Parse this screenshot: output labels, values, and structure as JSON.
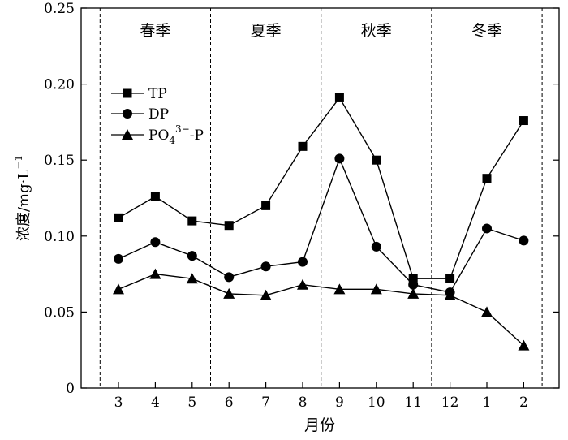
{
  "chart_data": {
    "type": "line",
    "categories": [
      "3",
      "4",
      "5",
      "6",
      "7",
      "8",
      "9",
      "10",
      "11",
      "12",
      "1",
      "2"
    ],
    "series": [
      {
        "name": "TP",
        "marker": "square",
        "values": [
          0.112,
          0.126,
          0.11,
          0.107,
          0.12,
          0.159,
          0.191,
          0.15,
          0.072,
          0.072,
          0.138,
          0.176
        ]
      },
      {
        "name": "DP",
        "marker": "circle",
        "values": [
          0.085,
          0.096,
          0.087,
          0.073,
          0.08,
          0.083,
          0.151,
          0.093,
          0.068,
          0.063,
          0.105,
          0.097
        ]
      },
      {
        "name": "PO4 3−-P",
        "marker": "triangle",
        "values": [
          0.065,
          0.075,
          0.072,
          0.062,
          0.061,
          0.068,
          0.065,
          0.065,
          0.062,
          0.061,
          0.05,
          0.028
        ]
      }
    ],
    "legend_labels": {
      "tp": "TP",
      "dp": "DP",
      "po4_base": "PO",
      "po4_sub": "4",
      "po4_sup": "3−",
      "po4_tail": "-P"
    },
    "seasons": [
      "春季",
      "夏季",
      "秋季",
      "冬季"
    ],
    "xlabel": "月份",
    "ylabel": "浓度/mg·L",
    "ylabel_sup": "−1",
    "ylim": [
      0,
      0.25
    ],
    "yticks": [
      "0",
      "0.05",
      "0.10",
      "0.15",
      "0.20",
      "0.25"
    ],
    "grid": false,
    "legend_position": "top-left",
    "colors": {
      "series": "#000000",
      "season_divider": "#000000"
    }
  }
}
